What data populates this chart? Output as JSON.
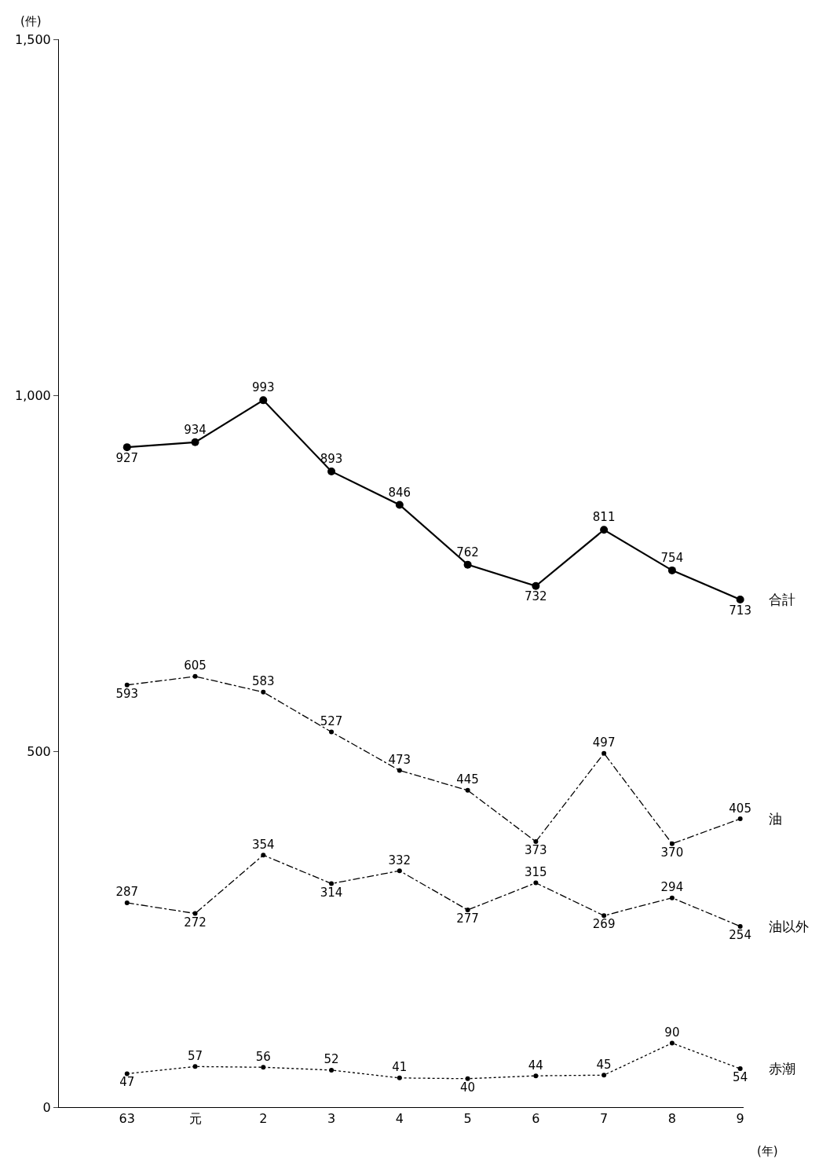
{
  "chart_data": {
    "type": "line",
    "categories": [
      "63",
      "元",
      "2",
      "3",
      "4",
      "5",
      "6",
      "7",
      "8",
      "9"
    ],
    "series": [
      {
        "name": "合計",
        "color": "#000000",
        "line_style": "solid",
        "values": [
          927,
          934,
          993,
          893,
          846,
          762,
          732,
          811,
          754,
          713
        ]
      },
      {
        "name": "油",
        "color": "#000000",
        "line_style": "dashed",
        "values": [
          593,
          605,
          583,
          527,
          473,
          445,
          373,
          497,
          370,
          405
        ]
      },
      {
        "name": "油以外",
        "color": "#000000",
        "line_style": "dashed",
        "values": [
          287,
          272,
          354,
          314,
          332,
          277,
          315,
          269,
          294,
          254
        ]
      },
      {
        "name": "赤潮",
        "color": "#000000",
        "line_style": "dotted",
        "values": [
          47,
          57,
          56,
          52,
          41,
          40,
          44,
          45,
          90,
          54
        ]
      }
    ],
    "ylabel": "(件)",
    "xlabel": "(年)",
    "ylim": [
      0,
      1500
    ],
    "yticks": [
      0,
      500,
      {
        "value": 1000,
        "label": "1,000"
      },
      {
        "value": 1500,
        "label": "1,500"
      }
    ],
    "data_labels": true,
    "marker": "circle",
    "legend": false
  }
}
